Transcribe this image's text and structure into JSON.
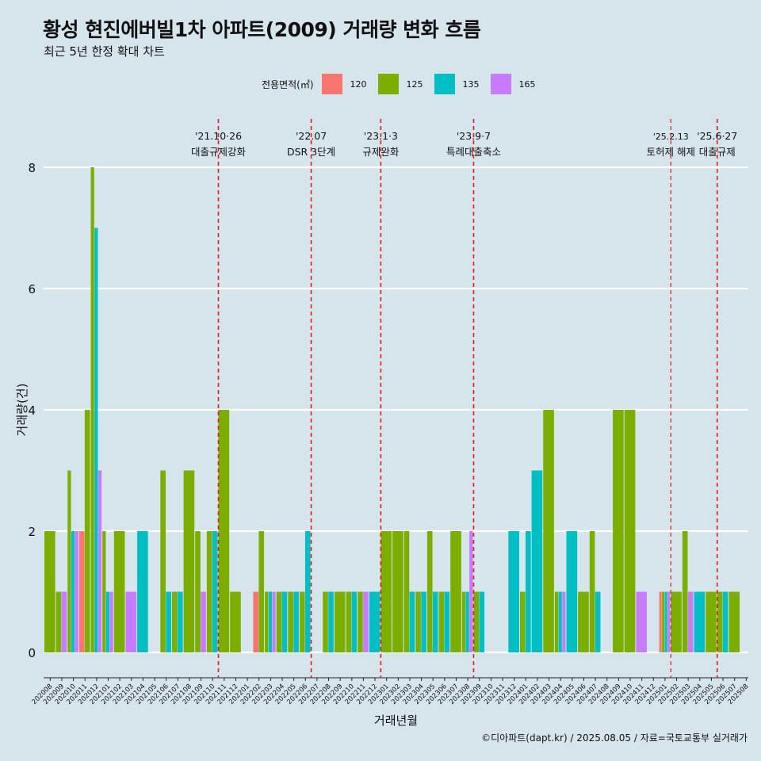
{
  "title": "황성 현진에버빌1차 아파트(2009) 거래량 변화 흐름",
  "subtitle": "최근 5년 한정 확대 차트",
  "caption": "©디아파트(dapt.kr) / 2025.08.05 / 자료=국토교통부 실거래가",
  "legend": {
    "title": "전용면적(㎡)",
    "items": [
      {
        "label": "120",
        "color": "#F8766D"
      },
      {
        "label": "125",
        "color": "#7CAE00"
      },
      {
        "label": "135",
        "color": "#00BFC4"
      },
      {
        "label": "165",
        "color": "#C77CFF"
      }
    ]
  },
  "chart_data": {
    "type": "bar",
    "xlabel": "거래년월",
    "ylabel": "거래량(건)",
    "ylim": [
      0,
      8
    ],
    "yticks": [
      0,
      2,
      4,
      6,
      8
    ],
    "grid": true,
    "categories": [
      "202008",
      "202009",
      "202010",
      "202011",
      "202012",
      "202101",
      "202102",
      "202103",
      "202104",
      "202105",
      "202106",
      "202107",
      "202108",
      "202109",
      "202110",
      "202111",
      "202112",
      "202201",
      "202202",
      "202203",
      "202204",
      "202205",
      "202206",
      "202207",
      "202208",
      "202209",
      "202210",
      "202211",
      "202212",
      "202301",
      "202302",
      "202303",
      "202304",
      "202305",
      "202306",
      "202307",
      "202308",
      "202309",
      "202310",
      "202311",
      "202312",
      "202401",
      "202402",
      "202403",
      "202404",
      "202405",
      "202406",
      "202407",
      "202408",
      "202409",
      "202410",
      "202411",
      "202412",
      "202501",
      "202502",
      "202503",
      "202504",
      "202505",
      "202506",
      "202507",
      "202508"
    ],
    "series": [
      {
        "name": "120",
        "values": [
          0,
          0,
          0,
          2,
          0,
          0,
          0,
          0,
          0,
          0,
          0,
          0,
          0,
          0,
          0,
          0,
          0,
          0,
          1,
          0,
          0,
          0,
          0,
          0,
          0,
          0,
          0,
          0,
          0,
          0,
          0,
          0,
          0,
          0,
          0,
          0,
          0,
          0,
          0,
          0,
          0,
          0,
          0,
          0,
          0,
          0,
          0,
          0,
          0,
          0,
          0,
          0,
          0,
          1,
          0,
          0,
          0,
          0,
          0,
          0,
          0
        ]
      },
      {
        "name": "125",
        "values": [
          2,
          1,
          3,
          4,
          8,
          2,
          2,
          0,
          0,
          0,
          3,
          1,
          3,
          2,
          2,
          4,
          1,
          0,
          2,
          1,
          1,
          1,
          1,
          0,
          1,
          1,
          1,
          1,
          0,
          2,
          2,
          2,
          1,
          2,
          1,
          2,
          1,
          1,
          0,
          0,
          0,
          1,
          0,
          4,
          1,
          0,
          1,
          2,
          0,
          4,
          4,
          0,
          0,
          1,
          1,
          2,
          0,
          1,
          1,
          1,
          0
        ]
      },
      {
        "name": "135",
        "values": [
          0,
          0,
          2,
          0,
          7,
          1,
          0,
          0,
          2,
          0,
          1,
          1,
          0,
          0,
          2,
          0,
          0,
          0,
          0,
          1,
          1,
          1,
          2,
          0,
          1,
          0,
          1,
          0,
          1,
          0,
          0,
          1,
          1,
          1,
          1,
          0,
          1,
          1,
          0,
          0,
          2,
          2,
          3,
          0,
          1,
          2,
          0,
          1,
          0,
          0,
          0,
          0,
          0,
          1,
          0,
          0,
          1,
          0,
          1,
          0,
          0
        ]
      },
      {
        "name": "165",
        "values": [
          0,
          1,
          2,
          0,
          3,
          1,
          0,
          1,
          0,
          0,
          0,
          0,
          0,
          1,
          0,
          0,
          0,
          0,
          0,
          1,
          0,
          0,
          0,
          0,
          0,
          0,
          0,
          1,
          0,
          0,
          0,
          0,
          0,
          0,
          0,
          0,
          2,
          0,
          0,
          0,
          0,
          0,
          0,
          0,
          1,
          0,
          0,
          0,
          0,
          0,
          0,
          1,
          0,
          1,
          0,
          1,
          0,
          0,
          0,
          0,
          0
        ]
      }
    ],
    "annotations": [
      {
        "date": "202111",
        "line1": "'21.10·26",
        "line2": "대출규제강화"
      },
      {
        "date": "202207",
        "line1": "'22.07",
        "line2": "DSR 3단계"
      },
      {
        "date": "202301",
        "line1": "'23.1·3",
        "line2": "규제완화"
      },
      {
        "date": "202309",
        "line1": "'23.9·7",
        "line2": "특례대출축소"
      },
      {
        "date": "202502",
        "line1": "'25.2.13",
        "line2": "토허제 해제"
      },
      {
        "date": "202506",
        "line1": "'25.6·27",
        "line2": "대출규제"
      }
    ]
  }
}
